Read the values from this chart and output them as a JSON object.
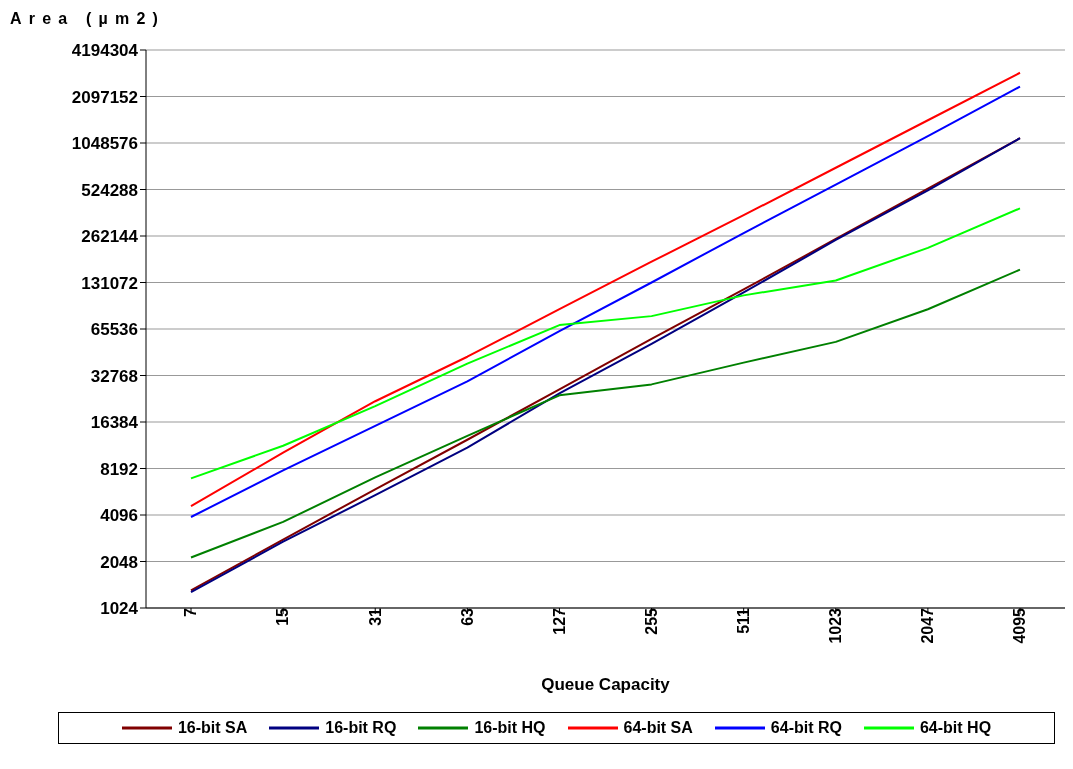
{
  "chart_data": {
    "type": "line",
    "ylabel": "Area (µm2)",
    "xlabel": "Queue Capacity",
    "categories": [
      "7",
      "15",
      "31",
      "63",
      "127",
      "255",
      "511",
      "1023",
      "2047",
      "4095"
    ],
    "log": "y",
    "ylim": [
      1024,
      4194304
    ],
    "yticks": [
      1024,
      2048,
      4096,
      8192,
      16384,
      32768,
      65536,
      131072,
      262144,
      524288,
      1048576,
      2097152,
      4194304
    ],
    "grid": "y",
    "legend": "bottom",
    "marker": "none",
    "series": [
      {
        "name": "16-bit SA",
        "color": "#800000",
        "values": [
          1334,
          2834,
          6012,
          12576,
          26660,
          56540,
          118200,
          250700,
          531000,
          1126000
        ]
      },
      {
        "name": "16-bit RQ",
        "color": "#000080",
        "values": [
          1296,
          2751,
          5503,
          11170,
          25130,
          52500,
          113000,
          247000,
          517000,
          1126000
        ]
      },
      {
        "name": "16-bit HQ",
        "color": "#008000",
        "values": [
          2172,
          3694,
          7176,
          13330,
          24390,
          28700,
          39700,
          54100,
          88000,
          158800
        ]
      },
      {
        "name": "64-bit SA",
        "color": "#ff0000",
        "values": [
          4677,
          10370,
          22330,
          43350,
          88000,
          178700,
          357400,
          725000,
          1472000,
          2988000
        ]
      },
      {
        "name": "64-bit RQ",
        "color": "#0000ff",
        "values": [
          3976,
          7954,
          15450,
          29990,
          63600,
          131072,
          274100,
          564000,
          1162000,
          2431000
        ]
      },
      {
        "name": "64-bit HQ",
        "color": "#00ff00",
        "values": [
          7070,
          11500,
          20740,
          39100,
          69500,
          79400,
          108200,
          135000,
          219600,
          396000
        ]
      }
    ]
  }
}
